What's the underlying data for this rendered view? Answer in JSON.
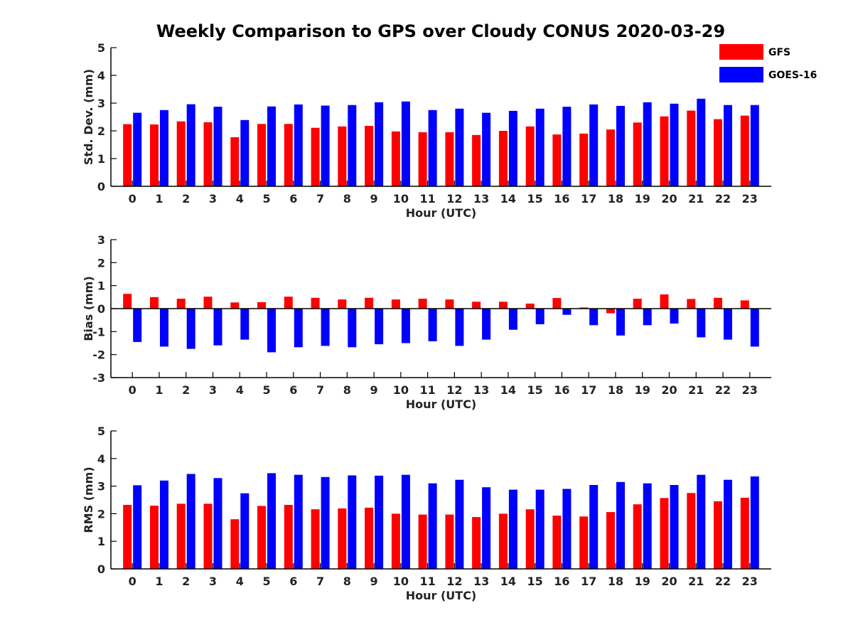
{
  "title": "Weekly Comparison to GPS over Cloudy CONUS 2020-03-29",
  "colors": {
    "GFS": "#ff0000",
    "GOES-16": "#0000ff"
  },
  "legend": {
    "placement": "top-right",
    "entries": [
      "GFS",
      "GOES-16"
    ]
  },
  "chart_data": [
    {
      "type": "bar",
      "xlabel": "Hour (UTC)",
      "ylabel": "Std. Dev. (mm)",
      "ylim": [
        0,
        5
      ],
      "yticks": [
        0,
        1,
        2,
        3,
        4,
        5
      ],
      "categories": [
        "0",
        "1",
        "2",
        "3",
        "4",
        "5",
        "6",
        "7",
        "8",
        "9",
        "10",
        "11",
        "12",
        "13",
        "14",
        "15",
        "16",
        "17",
        "18",
        "19",
        "20",
        "21",
        "22",
        "23"
      ],
      "series": [
        {
          "name": "GFS",
          "values": [
            2.24,
            2.23,
            2.34,
            2.31,
            1.77,
            2.25,
            2.25,
            2.11,
            2.16,
            2.18,
            1.98,
            1.95,
            1.95,
            1.85,
            2.0,
            2.16,
            1.87,
            1.9,
            2.05,
            2.3,
            2.52,
            2.73,
            2.42,
            2.55
          ]
        },
        {
          "name": "GOES-16",
          "values": [
            2.65,
            2.75,
            2.96,
            2.87,
            2.39,
            2.88,
            2.95,
            2.91,
            2.93,
            3.03,
            3.06,
            2.75,
            2.8,
            2.65,
            2.72,
            2.8,
            2.87,
            2.95,
            2.9,
            3.03,
            2.98,
            3.16,
            2.93,
            2.93
          ]
        }
      ]
    },
    {
      "type": "bar",
      "xlabel": "Hour (UTC)",
      "ylabel": "Bias (mm)",
      "ylim": [
        -3,
        3
      ],
      "yticks": [
        -3,
        -2,
        -1,
        0,
        1,
        2,
        3
      ],
      "categories": [
        "0",
        "1",
        "2",
        "3",
        "4",
        "5",
        "6",
        "7",
        "8",
        "9",
        "10",
        "11",
        "12",
        "13",
        "14",
        "15",
        "16",
        "17",
        "18",
        "19",
        "20",
        "21",
        "22",
        "23"
      ],
      "series": [
        {
          "name": "GFS",
          "values": [
            0.64,
            0.5,
            0.43,
            0.52,
            0.27,
            0.28,
            0.52,
            0.47,
            0.4,
            0.47,
            0.4,
            0.43,
            0.4,
            0.3,
            0.3,
            0.22,
            0.46,
            0.05,
            -0.2,
            0.43,
            0.62,
            0.42,
            0.47,
            0.36
          ]
        },
        {
          "name": "GOES-16",
          "values": [
            -1.45,
            -1.65,
            -1.75,
            -1.6,
            -1.35,
            -1.9,
            -1.68,
            -1.62,
            -1.68,
            -1.55,
            -1.5,
            -1.42,
            -1.62,
            -1.35,
            -0.92,
            -0.68,
            -0.27,
            -0.72,
            -1.17,
            -0.72,
            -0.65,
            -1.25,
            -1.35,
            -1.65
          ]
        }
      ]
    },
    {
      "type": "bar",
      "xlabel": "Hour (UTC)",
      "ylabel": "RMS (mm)",
      "ylim": [
        0,
        5
      ],
      "yticks": [
        0,
        1,
        2,
        3,
        4,
        5
      ],
      "categories": [
        "0",
        "1",
        "2",
        "3",
        "4",
        "5",
        "6",
        "7",
        "8",
        "9",
        "10",
        "11",
        "12",
        "13",
        "14",
        "15",
        "16",
        "17",
        "18",
        "19",
        "20",
        "21",
        "22",
        "23"
      ],
      "series": [
        {
          "name": "GFS",
          "values": [
            2.32,
            2.29,
            2.36,
            2.36,
            1.8,
            2.28,
            2.32,
            2.16,
            2.19,
            2.22,
            2.0,
            1.97,
            1.97,
            1.88,
            2.0,
            2.16,
            1.93,
            1.9,
            2.06,
            2.34,
            2.57,
            2.75,
            2.45,
            2.58
          ]
        },
        {
          "name": "GOES-16",
          "values": [
            3.03,
            3.2,
            3.44,
            3.29,
            2.74,
            3.47,
            3.41,
            3.33,
            3.39,
            3.38,
            3.41,
            3.1,
            3.23,
            2.96,
            2.87,
            2.87,
            2.9,
            3.04,
            3.15,
            3.1,
            3.04,
            3.41,
            3.23,
            3.35
          ]
        }
      ]
    }
  ]
}
